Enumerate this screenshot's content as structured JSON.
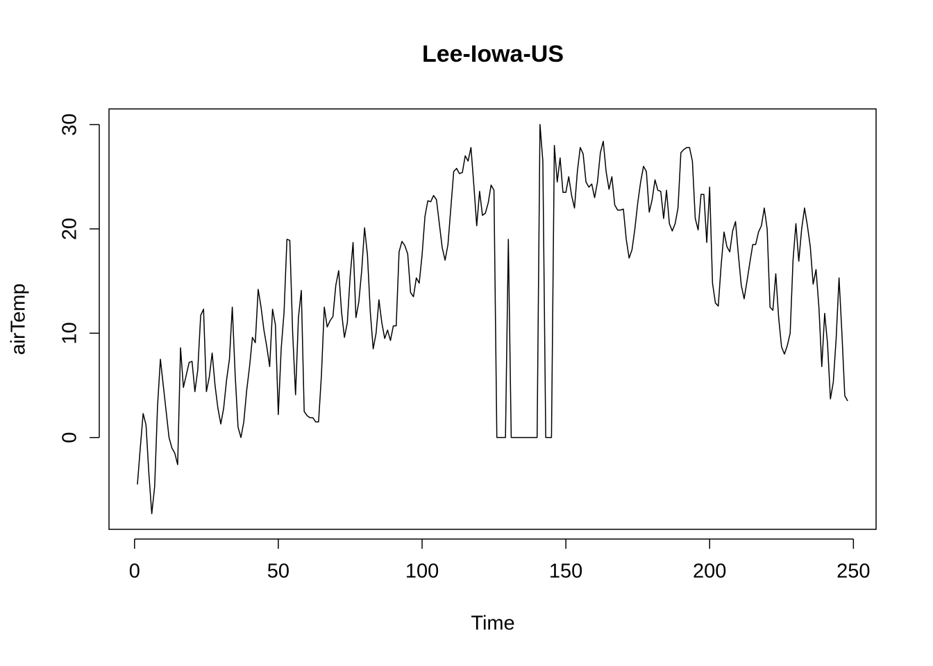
{
  "chart_data": {
    "type": "line",
    "title": "Lee-Iowa-US",
    "xlabel": "Time",
    "ylabel": "airTemp",
    "color": "#000000",
    "x": [
      1,
      2,
      3,
      4,
      5,
      6,
      7,
      8,
      9,
      10,
      11,
      12,
      13,
      14,
      15,
      16,
      17,
      18,
      19,
      20,
      21,
      22,
      23,
      24,
      25,
      26,
      27,
      28,
      29,
      30,
      31,
      32,
      33,
      34,
      35,
      36,
      37,
      38,
      39,
      40,
      41,
      42,
      43,
      44,
      45,
      46,
      47,
      48,
      49,
      50,
      51,
      52,
      53,
      54,
      55,
      56,
      57,
      58,
      59,
      60,
      61,
      62,
      63,
      64,
      65,
      66,
      67,
      68,
      69,
      70,
      71,
      72,
      73,
      74,
      75,
      76,
      77,
      78,
      79,
      80,
      81,
      82,
      83,
      84,
      85,
      86,
      87,
      88,
      89,
      90,
      91,
      92,
      93,
      94,
      95,
      96,
      97,
      98,
      99,
      100,
      101,
      102,
      103,
      104,
      105,
      106,
      107,
      108,
      109,
      110,
      111,
      112,
      113,
      114,
      115,
      116,
      117,
      118,
      119,
      120,
      121,
      122,
      123,
      124,
      125,
      126,
      127,
      128,
      129,
      130,
      131,
      132,
      133,
      134,
      135,
      136,
      137,
      138,
      139,
      140,
      141,
      142,
      143,
      144,
      145,
      146,
      147,
      148,
      149,
      150,
      151,
      152,
      153,
      154,
      155,
      156,
      157,
      158,
      159,
      160,
      161,
      162,
      163,
      164,
      165,
      166,
      167,
      168,
      169,
      170,
      171,
      172,
      173,
      174,
      175,
      176,
      177,
      178,
      179,
      180,
      181,
      182,
      183,
      184,
      185,
      186,
      187,
      188,
      189,
      190,
      191,
      192,
      193,
      194,
      195,
      196,
      197,
      198,
      199,
      200,
      201,
      202,
      203,
      204,
      205,
      206,
      207,
      208,
      209,
      210,
      211,
      212,
      213,
      214,
      215,
      216,
      217,
      218,
      219,
      220,
      221,
      222,
      223,
      224,
      225,
      226,
      227,
      228,
      229,
      230,
      231,
      232,
      233,
      234,
      235,
      236,
      237,
      238,
      239,
      240,
      241,
      242,
      243,
      244,
      245,
      246,
      247,
      248
    ],
    "values": [
      -4.5,
      -1,
      2.3,
      1.2,
      -3.5,
      -7.3,
      -4.7,
      3,
      7.5,
      5,
      2.5,
      0,
      -1,
      -1.5,
      -2.6,
      8.6,
      4.8,
      6,
      7.2,
      7.3,
      4.4,
      6.5,
      11.7,
      12.3,
      4.4,
      5.8,
      8.1,
      5,
      2.8,
      1.3,
      2.8,
      5.5,
      7.5,
      12.5,
      6,
      1,
      0,
      1.5,
      4.5,
      6.8,
      9.6,
      9.1,
      14.2,
      12.5,
      10.3,
      8.7,
      6.8,
      12.3,
      10.8,
      2.2,
      8.5,
      12,
      19,
      18.9,
      10,
      4.1,
      11.5,
      14.1,
      2.5,
      2.1,
      1.9,
      1.9,
      1.5,
      1.5,
      6,
      12.5,
      10.6,
      11.2,
      11.6,
      14.6,
      16,
      12,
      9.6,
      11,
      15.5,
      18.7,
      11.5,
      13,
      16,
      20.1,
      17.5,
      12,
      8.5,
      10,
      13.2,
      11,
      9.5,
      10.3,
      9.3,
      10.7,
      10.7,
      17.8,
      18.8,
      18.4,
      17.6,
      13.9,
      13.5,
      15.3,
      14.8,
      17.5,
      21.2,
      22.7,
      22.6,
      23.2,
      22.8,
      20.5,
      18.2,
      17,
      18.5,
      22,
      25.5,
      25.8,
      25.3,
      25.4,
      27,
      26.5,
      27.8,
      24.2,
      20.3,
      23.6,
      21.3,
      21.5,
      22.5,
      24.2,
      23.7,
      0,
      0,
      0,
      0,
      19,
      0,
      0,
      0,
      0,
      0,
      0,
      0,
      0,
      0,
      0,
      30,
      26.5,
      0,
      0,
      0,
      28,
      24.5,
      26.8,
      23.5,
      23.5,
      25,
      23.2,
      22,
      25.5,
      27.8,
      27.2,
      24.5,
      24,
      24.3,
      23,
      24.5,
      27.3,
      28.4,
      25.5,
      23.8,
      25,
      22.3,
      21.8,
      21.8,
      21.9,
      19,
      17.2,
      18,
      20,
      22.5,
      24.5,
      26,
      25.5,
      21.6,
      22.8,
      24.7,
      23.7,
      23.6,
      21,
      23.7,
      20.5,
      19.8,
      20.5,
      22,
      27.3,
      27.6,
      27.8,
      27.8,
      26.5,
      21,
      19.9,
      23.3,
      23.3,
      18.7,
      24,
      14.8,
      12.9,
      12.6,
      16.5,
      19.7,
      18.3,
      17.8,
      19.8,
      20.7,
      17.5,
      14.6,
      13.3,
      15,
      16.8,
      18.5,
      18.5,
      19.7,
      20.3,
      22,
      20,
      12.5,
      12.2,
      15.7,
      11.5,
      8.7,
      8,
      8.8,
      10,
      17,
      20.5,
      16.9,
      20,
      22,
      20.3,
      18.3,
      14.7,
      16.1,
      12.5,
      6.8,
      11.9,
      9,
      3.7,
      5.3,
      9.5,
      15.3,
      10,
      4,
      3.5
    ],
    "xlim": [
      -8.88,
      257.88
    ],
    "ylim": [
      -8.8,
      31.5
    ],
    "xticks": [
      0,
      50,
      100,
      150,
      200,
      250
    ],
    "yticks": [
      0,
      10,
      20,
      30
    ]
  }
}
